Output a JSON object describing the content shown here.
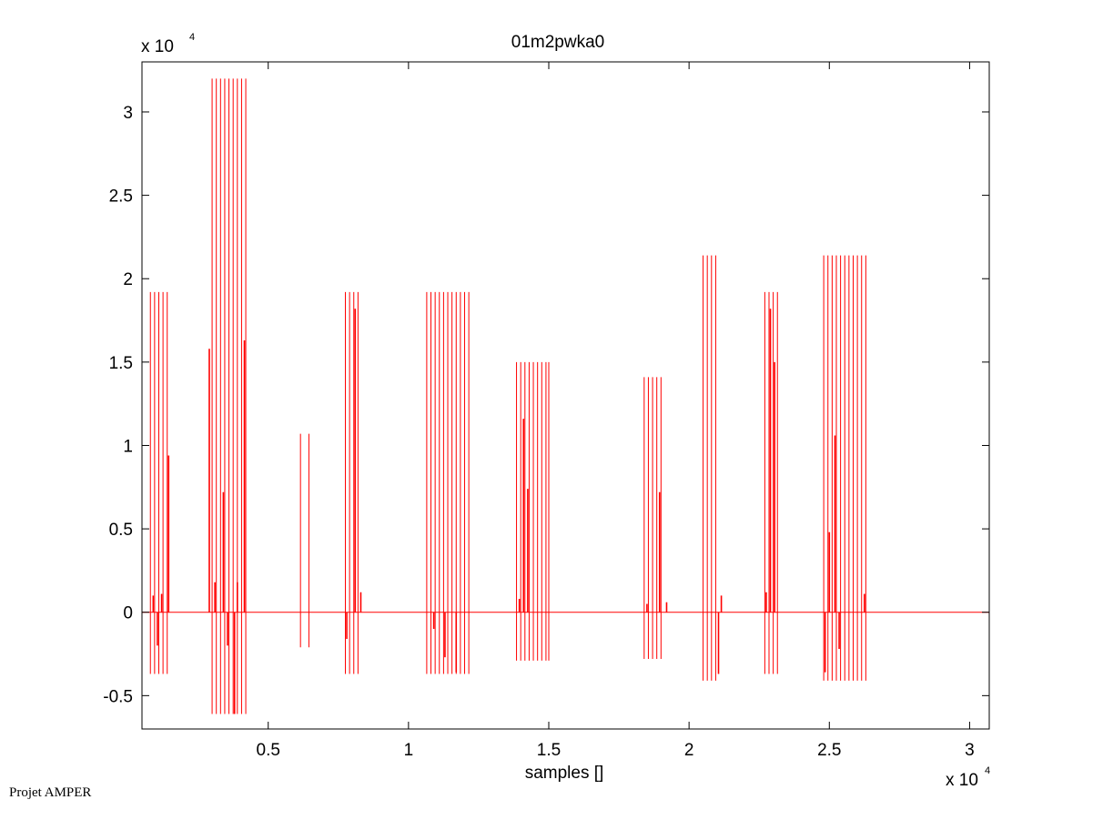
{
  "chart_data": {
    "type": "line",
    "title": "01m2pwka0",
    "xlabel": "samples []",
    "ylabel": "",
    "x_multiplier": "x 10",
    "x_exponent": "4",
    "y_multiplier": "x 10",
    "y_exponent": "4",
    "xlim": [
      500,
      30700
    ],
    "ylim": [
      -7000,
      33000
    ],
    "xticks": [
      5000,
      10000,
      15000,
      20000,
      25000,
      30000
    ],
    "xtick_labels": [
      "0.5",
      "1",
      "1.5",
      "2",
      "2.5",
      "3"
    ],
    "yticks": [
      -5000,
      0,
      5000,
      10000,
      15000,
      20000,
      25000,
      30000
    ],
    "ytick_labels": [
      "-0.5",
      "0",
      "0.5",
      "1",
      "1.5",
      "2",
      "2.5",
      "3"
    ],
    "grid": false,
    "color": "#ff0000",
    "baseline": 0,
    "bursts": [
      {
        "x": [
          800,
          950,
          1100,
          1250,
          1400
        ],
        "max": 19200,
        "min": -3700
      },
      {
        "x": [
          3000,
          3150,
          3300,
          3450,
          3600,
          3750,
          3900,
          4050,
          4200
        ],
        "max": 32000,
        "min": -6100
      },
      {
        "x": [
          6150,
          6450
        ],
        "max": 10700,
        "min": -2100
      },
      {
        "x": [
          7750,
          7900,
          8050,
          8200
        ],
        "max": 19200,
        "min": -3700
      },
      {
        "x": [
          10650,
          10800,
          10950,
          11100,
          11250,
          11400,
          11550,
          11700,
          11850,
          12000,
          12150
        ],
        "max": 19200,
        "min": -3700
      },
      {
        "x": [
          13850,
          14000,
          14150,
          14300,
          14450,
          14600,
          14750,
          14900,
          15000
        ],
        "max": 15000,
        "min": -2900
      },
      {
        "x": [
          18400,
          18550,
          18700,
          18850,
          19000
        ],
        "max": 14100,
        "min": -2800
      },
      {
        "x": [
          20500,
          20650,
          20800,
          20950
        ],
        "max": 21400,
        "min": -4100
      },
      {
        "x": [
          22700,
          22850,
          23000,
          23150
        ],
        "max": 19200,
        "min": -3700
      },
      {
        "x": [
          24800,
          24950,
          25100,
          25250,
          25400,
          25550,
          25700,
          25850,
          26000,
          26150,
          26300
        ],
        "max": 21400,
        "min": -4100
      }
    ],
    "inner_spikes": [
      {
        "x": 1450,
        "y": 9400
      },
      {
        "x": 1200,
        "y": 1100
      },
      {
        "x": 1050,
        "y": -2000
      },
      {
        "x": 900,
        "y": 1000
      },
      {
        "x": 2900,
        "y": 15800
      },
      {
        "x": 3100,
        "y": 1800
      },
      {
        "x": 3400,
        "y": 7200
      },
      {
        "x": 3550,
        "y": -2000
      },
      {
        "x": 3900,
        "y": 1800
      },
      {
        "x": 4150,
        "y": 16300
      },
      {
        "x": 3800,
        "y": -6100
      },
      {
        "x": 8100,
        "y": 18200
      },
      {
        "x": 7800,
        "y": -1600
      },
      {
        "x": 8300,
        "y": 1200
      },
      {
        "x": 10900,
        "y": -1000
      },
      {
        "x": 11700,
        "y": -3600
      },
      {
        "x": 11300,
        "y": -2700
      },
      {
        "x": 14100,
        "y": 11600
      },
      {
        "x": 14250,
        "y": 7400
      },
      {
        "x": 13950,
        "y": 800
      },
      {
        "x": 18950,
        "y": 7200
      },
      {
        "x": 19200,
        "y": 600
      },
      {
        "x": 18500,
        "y": 500
      },
      {
        "x": 21050,
        "y": -3700
      },
      {
        "x": 21150,
        "y": 1000
      },
      {
        "x": 22900,
        "y": 18200
      },
      {
        "x": 23050,
        "y": 15000
      },
      {
        "x": 22750,
        "y": 1200
      },
      {
        "x": 25000,
        "y": 4800
      },
      {
        "x": 25200,
        "y": 10600
      },
      {
        "x": 25350,
        "y": -2200
      },
      {
        "x": 24850,
        "y": -3600
      },
      {
        "x": 26250,
        "y": 1100
      }
    ]
  },
  "footer_text": "Projet AMPER"
}
